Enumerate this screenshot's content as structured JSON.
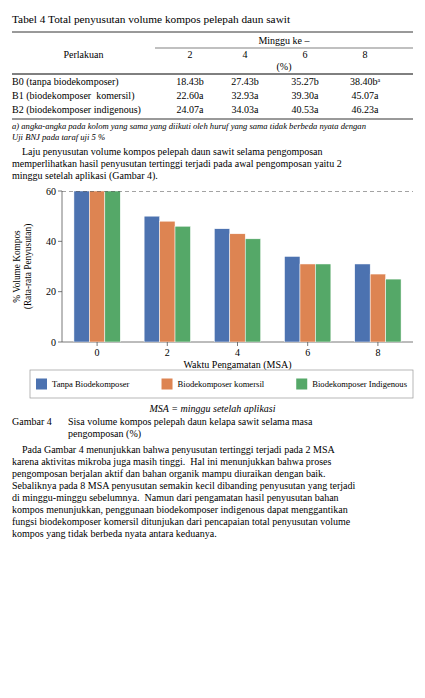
{
  "chart_data": {
    "type": "bar",
    "categories": [
      "0",
      "2",
      "4",
      "6",
      "8"
    ],
    "series": [
      {
        "name": "Tanpa Biodekomposer",
        "color": "#4c72b0",
        "values": [
          60,
          50,
          45,
          34,
          31
        ]
      },
      {
        "name": "Biodekomposer komersil",
        "color": "#dd8452",
        "values": [
          60,
          48,
          43,
          31,
          27
        ]
      },
      {
        "name": "Biodekomposer Indigenous",
        "color": "#55a868",
        "values": [
          60,
          46,
          41,
          31,
          25
        ]
      }
    ],
    "x_label": "Waktu Pengamatan (MSA)",
    "y_label": "% Volume Kompos\n(Rata-rata Penyusutan)",
    "ylim": [
      0,
      60
    ],
    "yticks": [
      0,
      20,
      40,
      60
    ],
    "reference_line": {
      "value": 60,
      "line_style": "dashed"
    },
    "legend": "bottom"
  },
  "page": {
    "title": "Tabel 4 Total penyusutan volume kompos pelepah daun sawit",
    "table": {
      "header_col0": "Perlakuan",
      "header_span": "Minggu ke –",
      "col_headers": [
        "2",
        "4",
        "6",
        "8"
      ],
      "unit_row": "(%)",
      "rows": [
        {
          "label": "B0 (tanpa biodekomposer)",
          "values": [
            "18.43b",
            "27.43b",
            "35.27b",
            "38.40bᵃ"
          ]
        },
        {
          "label": "B1 (biodekomposer  komersil)",
          "values": [
            "22.60a",
            "32.93a",
            "39.30a",
            "45.07a"
          ]
        },
        {
          "label": "B2 (biodekomposer indigenous)",
          "values": [
            "24.07a",
            "34.03a",
            "40.53a",
            "46.23a"
          ]
        }
      ],
      "footnote": "a) angka-angka pada kolom yang sama yang diikuti oleh huruf yang sama tidak berbeda nyata dengan\nUji BNJ pada taraf uji 5 %"
    },
    "para1_lines": [
      "    Laju penyusutan volume kompos pelepah daun sawit selama pengomposan",
      "memperlihatkan hasil penyusutan tertinggi terjadi pada awal pengomposan yaitu 2",
      "minggu setelah aplikasi (Gambar 4)."
    ],
    "caption_msa": "MSA = minggu setelah aplikasi",
    "figure_caption_label": "Gambar 4",
    "figure_caption_text": "Sisa volume kompos pelepah daun kelapa sawit selama masa\npengomposan (%)",
    "para2_lines": [
      "    Pada Gambar 4 menunjukkan bahwa penyusutan tertinggi terjadi pada 2 MSA",
      "karena aktivitas mikroba juga masih tinggi.  Hal ini menunjukkan bahwa proses",
      "pengomposan berjalan aktif dan bahan organik mampu diuraikan dengan baik.",
      "Sebaliknya pada 8 MSA penyusutan semakin kecil dibanding penyusutan yang terjadi",
      "di minggu-minggu sebelumnya.  Namun dari pengamatan hasil penyusutan bahan",
      "kompos menunjukkan, penggunaan biodekomposer indigenous dapat menggantikan",
      "fungsi biodekomposer komersil ditunjukan dari pencapaian total penyusutan volume",
      "kompos yang tidak berbeda nyata antara keduanya."
    ]
  }
}
